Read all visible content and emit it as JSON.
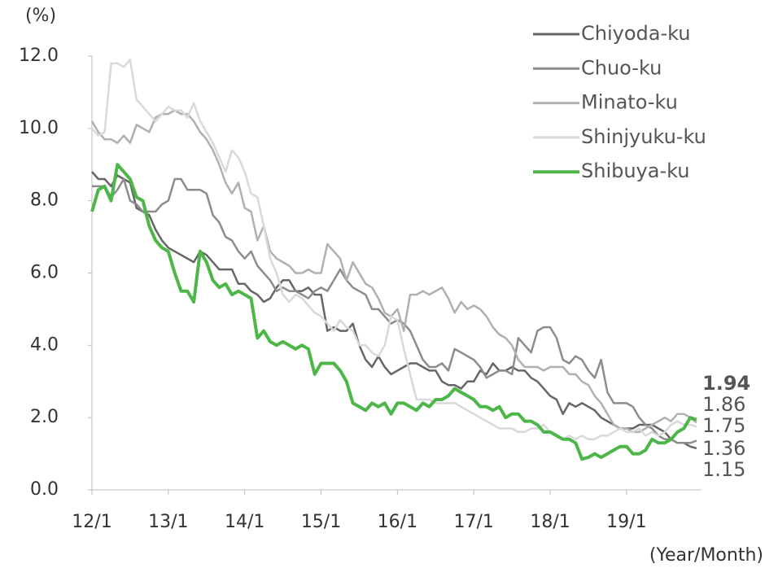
{
  "chart_data": {
    "type": "line",
    "y_label": "(%)",
    "x_label": "(Year/Month)",
    "categories": [
      "12/1",
      null,
      null,
      null,
      null,
      null,
      null,
      null,
      null,
      null,
      null,
      null,
      "13/1",
      null,
      null,
      null,
      null,
      null,
      null,
      null,
      null,
      null,
      null,
      null,
      "14/1",
      null,
      null,
      null,
      null,
      null,
      null,
      null,
      null,
      null,
      null,
      null,
      "15/1",
      null,
      null,
      null,
      null,
      null,
      null,
      null,
      null,
      null,
      null,
      null,
      "16/1",
      null,
      null,
      null,
      null,
      null,
      null,
      null,
      null,
      null,
      null,
      null,
      "17/1",
      null,
      null,
      null,
      null,
      null,
      null,
      null,
      null,
      null,
      null,
      null,
      "18/1",
      null,
      null,
      null,
      null,
      null,
      null,
      null,
      null,
      null,
      null,
      null,
      "19/1",
      null,
      null,
      null,
      null,
      null,
      null,
      null,
      null,
      null,
      null,
      null
    ],
    "ylim": [
      0,
      12
    ],
    "yticks": [
      {
        "value": 0,
        "label": "0.0"
      },
      {
        "value": 2,
        "label": "2.0"
      },
      {
        "value": 4,
        "label": "4.0"
      },
      {
        "value": 6,
        "label": "6.0"
      },
      {
        "value": 8,
        "label": "8.0"
      },
      {
        "value": 10,
        "label": "10.0"
      },
      {
        "value": 12,
        "label": "12.0"
      }
    ],
    "series": [
      {
        "name": "Chiyoda-ku",
        "color": "#666666",
        "values": [
          8.8,
          8.6,
          8.6,
          8.4,
          8.7,
          8.6,
          8.5,
          7.8,
          7.7,
          7.6,
          7.2,
          6.9,
          6.7,
          6.6,
          6.5,
          6.4,
          6.3,
          6.6,
          6.5,
          6.3,
          6.1,
          6.1,
          6.1,
          5.7,
          5.7,
          5.5,
          5.4,
          5.2,
          5.3,
          5.6,
          5.8,
          5.8,
          5.5,
          5.5,
          5.6,
          5.4,
          5.4,
          4.4,
          4.5,
          4.4,
          4.4,
          4.6,
          4.0,
          3.6,
          3.4,
          3.7,
          3.4,
          3.2,
          3.3,
          3.4,
          3.5,
          3.5,
          3.4,
          3.3,
          3.3,
          3.0,
          2.9,
          2.9,
          2.8,
          3.0,
          3.0,
          3.3,
          3.2,
          3.5,
          3.3,
          3.3,
          3.4,
          3.3,
          3.3,
          3.1,
          3.0,
          2.8,
          2.6,
          2.5,
          2.1,
          2.4,
          2.3,
          2.4,
          2.3,
          2.2,
          2.0,
          1.9,
          1.8,
          1.7,
          1.7,
          1.7,
          1.8,
          1.8,
          1.8,
          1.7,
          1.6,
          1.4,
          1.3,
          1.3,
          1.2,
          1.15
        ]
      },
      {
        "name": "Chuo-ku",
        "color": "#8c8c8c",
        "values": [
          8.4,
          8.4,
          8.4,
          8.1,
          8.3,
          8.6,
          8.0,
          7.9,
          7.7,
          7.7,
          7.7,
          7.9,
          8.0,
          8.6,
          8.6,
          8.3,
          8.3,
          8.3,
          8.2,
          7.6,
          7.4,
          7.0,
          6.9,
          6.6,
          6.4,
          6.6,
          6.2,
          6.0,
          5.8,
          5.5,
          5.6,
          5.5,
          5.5,
          5.4,
          5.3,
          5.5,
          5.6,
          5.5,
          5.8,
          6.1,
          5.8,
          5.6,
          5.5,
          5.4,
          5.0,
          5.0,
          4.8,
          4.6,
          4.7,
          4.6,
          4.4,
          4.0,
          3.6,
          3.4,
          3.4,
          3.5,
          3.3,
          3.9,
          3.8,
          3.7,
          3.6,
          3.4,
          3.1,
          3.2,
          3.3,
          3.3,
          3.2,
          4.2,
          4.0,
          3.8,
          4.4,
          4.5,
          4.5,
          4.2,
          3.6,
          3.5,
          3.7,
          3.6,
          3.3,
          3.1,
          3.6,
          2.7,
          2.4,
          2.4,
          2.4,
          2.3,
          2.0,
          1.8,
          1.7,
          1.5,
          1.4,
          1.4,
          1.3,
          1.3,
          1.3,
          1.36
        ]
      },
      {
        "name": "Minato-ku",
        "color": "#b0b0b0",
        "values": [
          10.2,
          9.9,
          9.7,
          9.7,
          9.6,
          9.8,
          9.6,
          10.1,
          10.0,
          9.9,
          10.3,
          10.4,
          10.4,
          10.5,
          10.4,
          10.4,
          10.2,
          9.9,
          9.7,
          9.4,
          9.0,
          8.5,
          8.2,
          8.5,
          7.8,
          7.7,
          6.9,
          7.3,
          6.6,
          6.4,
          6.3,
          6.2,
          6.0,
          6.0,
          6.1,
          6.0,
          6.0,
          6.8,
          6.6,
          6.4,
          5.8,
          6.3,
          6.0,
          5.7,
          5.6,
          5.3,
          4.9,
          4.8,
          5.0,
          4.4,
          5.4,
          5.4,
          5.5,
          5.4,
          5.5,
          5.6,
          5.3,
          4.9,
          5.2,
          5.0,
          5.1,
          5.0,
          4.8,
          4.5,
          4.3,
          4.2,
          4.0,
          3.6,
          3.4,
          3.4,
          3.4,
          3.3,
          3.4,
          3.4,
          3.4,
          3.2,
          3.2,
          3.0,
          2.9,
          2.6,
          2.4,
          2.1,
          1.8,
          1.7,
          1.7,
          1.6,
          1.6,
          1.7,
          1.8,
          1.9,
          2.0,
          1.9,
          2.1,
          2.1,
          2.0,
          1.86
        ]
      },
      {
        "name": "Shinjyuku-ku",
        "color": "#d9d9d9",
        "values": [
          10.0,
          9.8,
          9.9,
          11.8,
          11.8,
          11.7,
          11.9,
          10.8,
          10.6,
          10.4,
          10.2,
          10.4,
          10.6,
          10.5,
          10.5,
          10.3,
          10.7,
          10.2,
          9.9,
          9.6,
          9.2,
          8.8,
          9.4,
          9.2,
          8.8,
          8.2,
          8.1,
          7.3,
          6.4,
          6.0,
          5.4,
          5.2,
          5.4,
          5.3,
          5.1,
          4.9,
          4.8,
          4.6,
          4.4,
          4.7,
          4.5,
          4.4,
          4.0,
          4.0,
          3.8,
          3.7,
          4.0,
          4.8,
          4.7,
          3.9,
          3.2,
          2.5,
          2.5,
          2.5,
          2.4,
          2.4,
          2.4,
          2.4,
          2.3,
          2.2,
          2.1,
          2.0,
          1.9,
          1.8,
          1.7,
          1.7,
          1.7,
          1.6,
          1.6,
          1.7,
          1.7,
          1.8,
          1.6,
          1.5,
          1.4,
          1.5,
          1.4,
          1.5,
          1.4,
          1.4,
          1.5,
          1.5,
          1.6,
          1.7,
          1.6,
          1.6,
          1.7,
          1.5,
          1.6,
          1.5,
          1.6,
          1.8,
          1.9,
          1.8,
          1.8,
          1.75
        ]
      },
      {
        "name": "Shibuya-ku",
        "color": "#4cb648",
        "values": [
          7.7,
          8.3,
          8.4,
          8.0,
          9.0,
          8.8,
          8.6,
          8.1,
          8.0,
          7.3,
          6.9,
          6.7,
          6.6,
          6.0,
          5.5,
          5.5,
          5.2,
          6.6,
          6.3,
          5.8,
          5.6,
          5.7,
          5.4,
          5.5,
          5.4,
          5.3,
          4.2,
          4.4,
          4.1,
          4.0,
          4.1,
          4.0,
          3.9,
          4.0,
          3.9,
          3.2,
          3.5,
          3.5,
          3.5,
          3.3,
          3.0,
          2.4,
          2.3,
          2.2,
          2.4,
          2.3,
          2.4,
          2.1,
          2.4,
          2.4,
          2.3,
          2.2,
          2.4,
          2.3,
          2.5,
          2.5,
          2.6,
          2.8,
          2.7,
          2.6,
          2.5,
          2.3,
          2.3,
          2.2,
          2.3,
          2.0,
          2.1,
          2.1,
          1.9,
          1.9,
          1.8,
          1.6,
          1.6,
          1.5,
          1.4,
          1.4,
          1.3,
          0.85,
          0.9,
          1.0,
          0.9,
          1.0,
          1.1,
          1.2,
          1.2,
          1.0,
          1.0,
          1.1,
          1.4,
          1.3,
          1.3,
          1.4,
          1.6,
          1.7,
          2.0,
          1.94
        ]
      }
    ]
  }
}
